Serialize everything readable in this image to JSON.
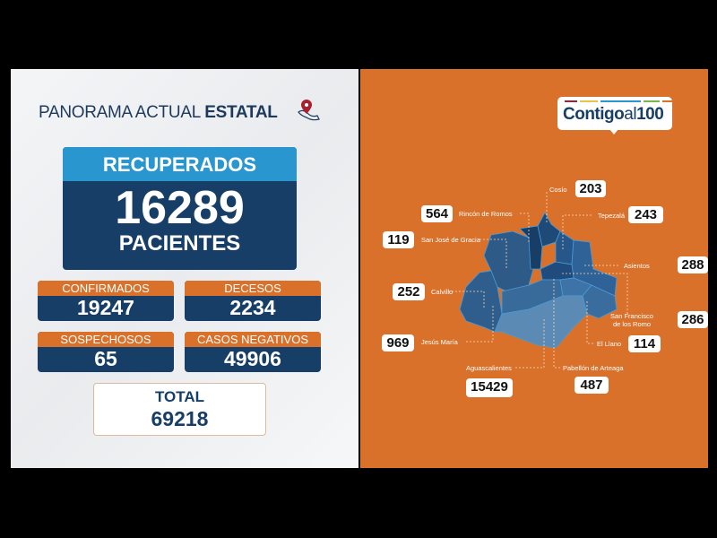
{
  "header": {
    "title_regular": "PANORAMA ACTUAL",
    "title_bold": "ESTATAL",
    "icon": "mexico-map-pin-icon"
  },
  "recuperados": {
    "label": "RECUPERADOS",
    "value": "16289",
    "unit": "PACIENTES"
  },
  "stats": [
    {
      "label": "CONFIRMADOS",
      "value": "19247"
    },
    {
      "label": "DECESOS",
      "value": "2234"
    },
    {
      "label": "SOSPECHOSOS",
      "value": "65"
    },
    {
      "label": "CASOS NEGATIVOS",
      "value": "49906"
    }
  ],
  "total": {
    "label": "TOTAL",
    "value": "69218"
  },
  "logo": {
    "bold": "Contigo",
    "regular": "al",
    "number": "100",
    "bar_colors": [
      "#8b2a3a",
      "#e6c34a",
      "#2a96cf",
      "#7ab648",
      "#d9712b"
    ]
  },
  "colors": {
    "orange": "#d9712b",
    "navy": "#173e66",
    "light_blue": "#2a96cf"
  },
  "municipalities": [
    {
      "name": "Cosío",
      "value": "203"
    },
    {
      "name": "Rincón de Romos",
      "value": "564"
    },
    {
      "name": "Tepezalá",
      "value": "243"
    },
    {
      "name": "San José de Gracia",
      "value": "119"
    },
    {
      "name": "Asientos",
      "value": "288"
    },
    {
      "name": "Calvillo",
      "value": "252"
    },
    {
      "name": "San Francisco de los Romo",
      "value": "286"
    },
    {
      "name": "Jesús María",
      "value": "969"
    },
    {
      "name": "El Llano",
      "value": "114"
    },
    {
      "name": "Aguascalientes",
      "value": "15429"
    },
    {
      "name": "Pabellón de Arteaga",
      "value": "487"
    }
  ]
}
